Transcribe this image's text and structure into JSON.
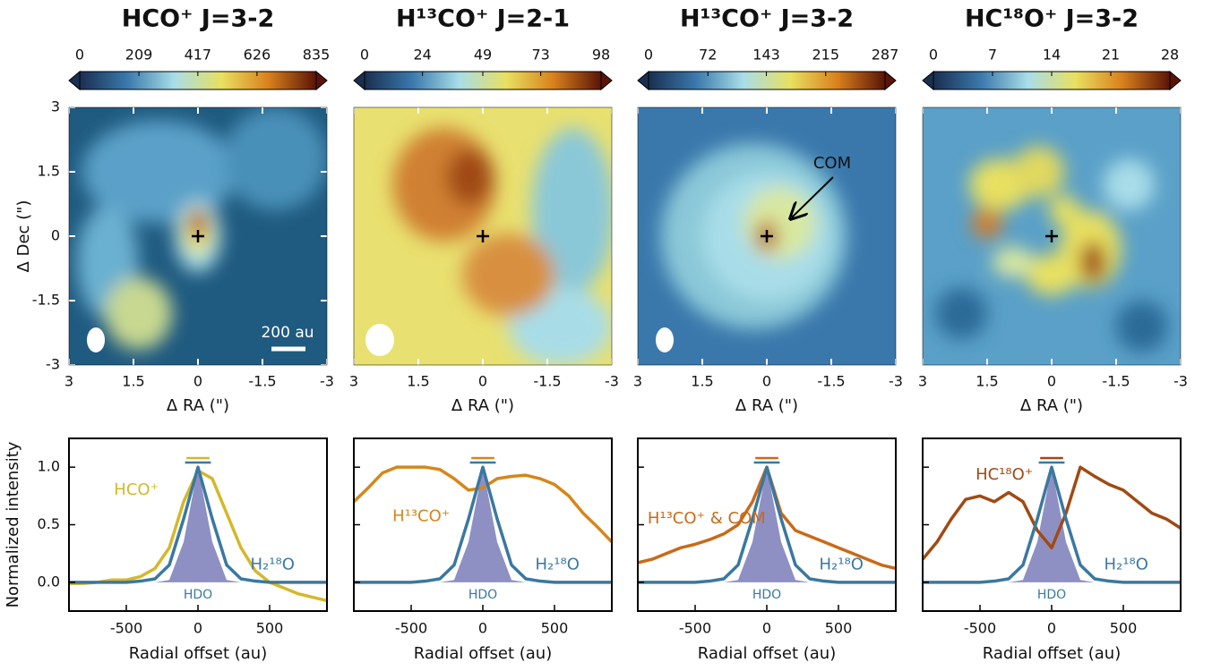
{
  "chart_data": [
    {
      "type": "image",
      "title": "HCO⁺ J=3-2",
      "colorbar_ticks": [
        0,
        209,
        417,
        626,
        835
      ],
      "xlim": [
        3,
        -3
      ],
      "xticks": [
        3,
        1.5,
        0,
        -1.5,
        -3
      ],
      "ylim": [
        -3,
        3
      ],
      "yticks": [
        -3,
        -1.5,
        0,
        1.5,
        3
      ],
      "xlabel": "Δ RA (\")",
      "ylabel": "Δ Dec (\")",
      "annotation": "200 au"
    },
    {
      "type": "image",
      "title": "H¹³CO⁺ J=2-1",
      "colorbar_ticks": [
        0,
        24,
        49,
        73,
        98
      ],
      "xlim": [
        3,
        -3
      ],
      "xticks": [
        3,
        1.5,
        0,
        -1.5,
        -3
      ],
      "ylim": [
        -3,
        3
      ],
      "xlabel": "Δ RA (\")"
    },
    {
      "type": "image",
      "title": "H¹³CO⁺ J=3-2",
      "colorbar_ticks": [
        0,
        72,
        143,
        215,
        287
      ],
      "xlim": [
        3,
        -3
      ],
      "xticks": [
        3,
        1.5,
        0,
        -1.5,
        -3
      ],
      "ylim": [
        -3,
        3
      ],
      "xlabel": "Δ RA (\")",
      "annotation": "COM"
    },
    {
      "type": "image",
      "title": "HC¹⁸O⁺ J=3-2",
      "colorbar_ticks": [
        0,
        7,
        14,
        21,
        28
      ],
      "xlim": [
        3,
        -3
      ],
      "xticks": [
        3,
        1.5,
        0,
        -1.5,
        -3
      ],
      "ylim": [
        -3,
        3
      ],
      "xlabel": "Δ RA (\")"
    },
    {
      "type": "line",
      "xlabel": "Radial offset (au)",
      "ylabel": "Normalized intensity",
      "xlim": [
        -900,
        900
      ],
      "xticks": [
        -500,
        0,
        500
      ],
      "ylim": [
        -0.25,
        1.25
      ],
      "yticks": [
        {
          "value": 0,
          "label": "0.0"
        },
        {
          "value": 0.5,
          "label": "0.5"
        },
        {
          "value": 1,
          "label": "1.0"
        }
      ],
      "x": [
        -900,
        -800,
        -700,
        -600,
        -500,
        -400,
        -300,
        -200,
        -100,
        0,
        100,
        200,
        300,
        400,
        500,
        600,
        700,
        800,
        900
      ],
      "series": [
        {
          "name": "HDO",
          "color": "#8e90c4",
          "values": [
            0,
            0,
            0,
            0,
            0,
            0,
            0,
            0.02,
            0.35,
            1.0,
            0.35,
            0.02,
            0,
            0,
            0,
            0,
            0,
            0,
            0
          ]
        },
        {
          "name": "HCO⁺",
          "color": "#d4b82a",
          "values": [
            -0.01,
            -0.01,
            0,
            0.02,
            0.02,
            0.05,
            0.12,
            0.3,
            0.7,
            0.97,
            0.9,
            0.6,
            0.3,
            0.1,
            0,
            -0.05,
            -0.1,
            -0.13,
            -0.16
          ]
        },
        {
          "name": "H₂¹⁸O",
          "color": "#3a78a0",
          "values": [
            0,
            0,
            0,
            0,
            0,
            0.01,
            0.03,
            0.15,
            0.55,
            1.0,
            0.55,
            0.15,
            0.03,
            0.01,
            0,
            0,
            0,
            0,
            0
          ]
        }
      ]
    },
    {
      "type": "line",
      "xlabel": "Radial offset (au)",
      "xlim": [
        -900,
        900
      ],
      "xticks": [
        -500,
        0,
        500
      ],
      "ylim": [
        -0.25,
        1.25
      ],
      "x": [
        -900,
        -800,
        -700,
        -600,
        -500,
        -400,
        -300,
        -200,
        -100,
        0,
        100,
        200,
        300,
        400,
        500,
        600,
        700,
        800,
        900
      ],
      "series": [
        {
          "name": "HDO",
          "color": "#8e90c4",
          "values": [
            0,
            0,
            0,
            0,
            0,
            0,
            0,
            0.02,
            0.35,
            1.0,
            0.35,
            0.02,
            0,
            0,
            0,
            0,
            0,
            0,
            0
          ]
        },
        {
          "name": "H¹³CO⁺",
          "color": "#d4871a",
          "values": [
            0.7,
            0.82,
            0.95,
            1.0,
            1.0,
            1.0,
            0.98,
            0.9,
            0.8,
            0.82,
            0.9,
            0.92,
            0.93,
            0.9,
            0.85,
            0.75,
            0.6,
            0.48,
            0.35
          ]
        },
        {
          "name": "H₂¹⁸O",
          "color": "#3a78a0",
          "values": [
            0,
            0,
            0,
            0,
            0,
            0.01,
            0.03,
            0.15,
            0.55,
            1.0,
            0.55,
            0.15,
            0.03,
            0.01,
            0,
            0,
            0,
            0,
            0
          ]
        }
      ]
    },
    {
      "type": "line",
      "xlabel": "Radial offset (au)",
      "xlim": [
        -900,
        900
      ],
      "xticks": [
        -500,
        0,
        500
      ],
      "ylim": [
        -0.25,
        1.25
      ],
      "x": [
        -900,
        -800,
        -700,
        -600,
        -500,
        -400,
        -300,
        -200,
        -100,
        0,
        100,
        200,
        300,
        400,
        500,
        600,
        700,
        800,
        900
      ],
      "series": [
        {
          "name": "HDO",
          "color": "#8e90c4",
          "values": [
            0,
            0,
            0,
            0,
            0,
            0,
            0,
            0.02,
            0.35,
            1.0,
            0.35,
            0.02,
            0,
            0,
            0,
            0,
            0,
            0,
            0
          ]
        },
        {
          "name": "H¹³CO⁺ & COM",
          "color": "#c96a18",
          "values": [
            0.17,
            0.2,
            0.25,
            0.3,
            0.33,
            0.37,
            0.42,
            0.5,
            0.7,
            1.0,
            0.6,
            0.45,
            0.4,
            0.35,
            0.3,
            0.25,
            0.2,
            0.15,
            0.12
          ]
        },
        {
          "name": "H₂¹⁸O",
          "color": "#3a78a0",
          "values": [
            0,
            0,
            0,
            0,
            0,
            0.01,
            0.03,
            0.15,
            0.55,
            1.0,
            0.55,
            0.15,
            0.03,
            0.01,
            0,
            0,
            0,
            0,
            0
          ]
        }
      ]
    },
    {
      "type": "line",
      "xlabel": "Radial offset (au)",
      "xlim": [
        -900,
        900
      ],
      "xticks": [
        -500,
        0,
        500
      ],
      "ylim": [
        -0.25,
        1.25
      ],
      "x": [
        -900,
        -800,
        -700,
        -600,
        -500,
        -400,
        -300,
        -200,
        -100,
        0,
        100,
        200,
        300,
        400,
        500,
        600,
        700,
        800,
        900
      ],
      "series": [
        {
          "name": "HDO",
          "color": "#8e90c4",
          "values": [
            0,
            0,
            0,
            0,
            0,
            0,
            0,
            0.02,
            0.35,
            1.0,
            0.35,
            0.02,
            0,
            0,
            0,
            0,
            0,
            0,
            0
          ]
        },
        {
          "name": "HC¹⁸O⁺",
          "color": "#a04a14",
          "values": [
            0.2,
            0.35,
            0.55,
            0.72,
            0.75,
            0.7,
            0.78,
            0.7,
            0.45,
            0.3,
            0.6,
            1.0,
            0.92,
            0.85,
            0.8,
            0.7,
            0.6,
            0.55,
            0.47
          ]
        },
        {
          "name": "H₂¹⁸O",
          "color": "#3a78a0",
          "values": [
            0,
            0,
            0,
            0,
            0,
            0.01,
            0.03,
            0.15,
            0.55,
            1.0,
            0.55,
            0.15,
            0.03,
            0.01,
            0,
            0,
            0,
            0,
            0
          ]
        }
      ]
    }
  ]
}
